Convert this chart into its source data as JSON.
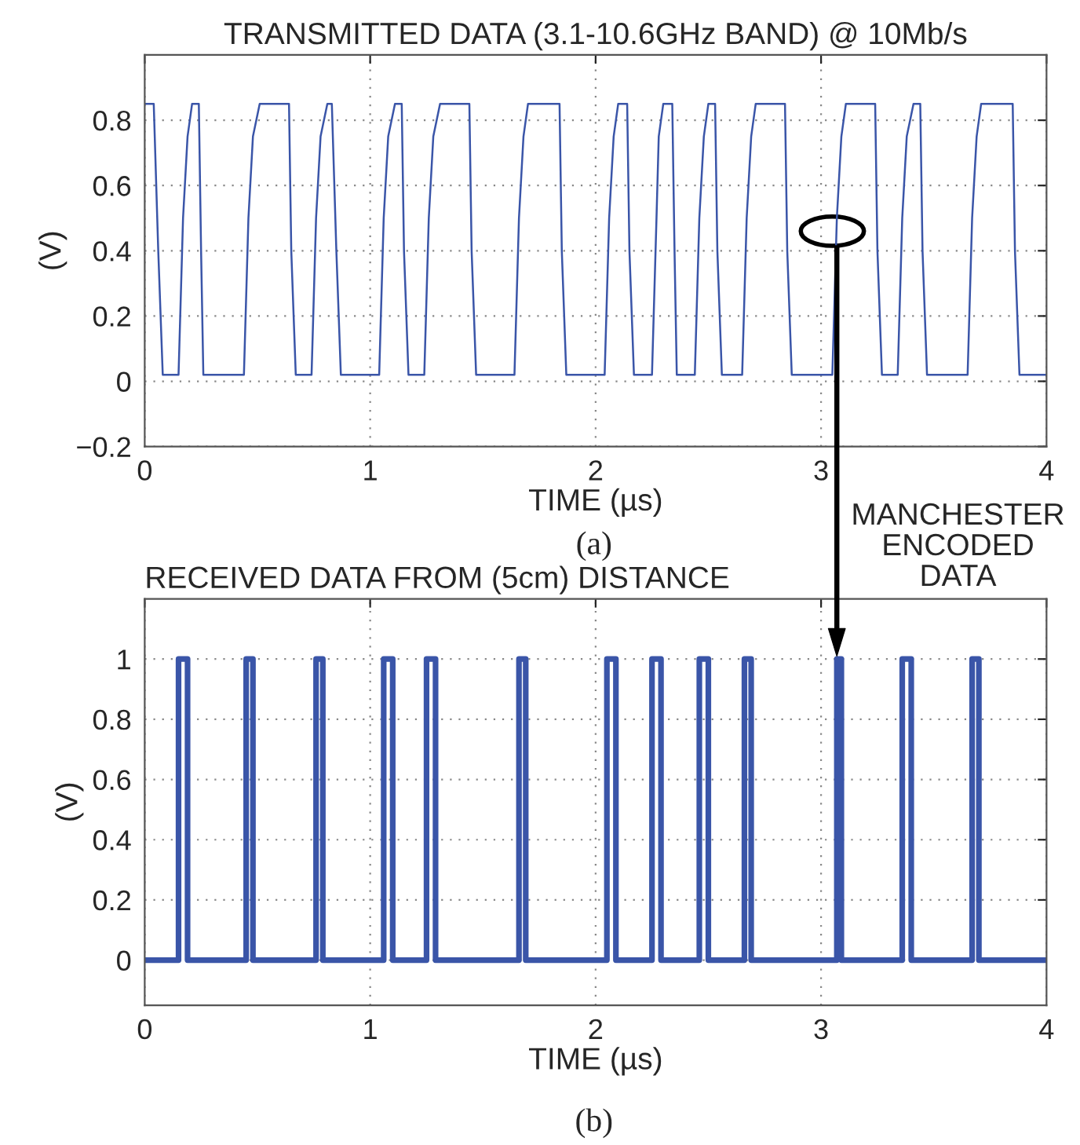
{
  "chart_data": [
    {
      "type": "line",
      "title": "TRANSMITTED DATA (3.1-10.6GHz BAND) @ 10Mb/s",
      "xlabel": "TIME (µs)",
      "ylabel": "(V)",
      "xlim": [
        0,
        4
      ],
      "xticks": [
        0,
        1,
        2,
        3,
        4
      ],
      "ylim": [
        -0.2,
        1
      ],
      "yticks": [
        {
          "value": -0.2,
          "label": "−0.2"
        },
        0,
        0.2,
        0.4,
        0.6,
        0.8
      ],
      "grid": true,
      "line_style": "solid",
      "annotations": [
        "(a)"
      ],
      "series": [
        {
          "color": "#3a55a8",
          "x": [
            0,
            0.04,
            0.06,
            0.08,
            0.15,
            0.17,
            0.19,
            0.21,
            0.24,
            0.25,
            0.26,
            0.44,
            0.46,
            0.48,
            0.51,
            0.64,
            0.65,
            0.67,
            0.74,
            0.76,
            0.78,
            0.81,
            0.83,
            0.85,
            0.87,
            1.04,
            1.06,
            1.08,
            1.11,
            1.14,
            1.15,
            1.17,
            1.24,
            1.26,
            1.28,
            1.31,
            1.44,
            1.45,
            1.47,
            1.64,
            1.66,
            1.68,
            1.7,
            1.84,
            1.85,
            1.87,
            2.04,
            2.06,
            2.08,
            2.1,
            2.14,
            2.15,
            2.17,
            2.25,
            2.27,
            2.28,
            2.3,
            2.34,
            2.35,
            2.36,
            2.44,
            2.46,
            2.48,
            2.5,
            2.53,
            2.54,
            2.56,
            2.65,
            2.67,
            2.69,
            2.71,
            2.84,
            2.85,
            2.87,
            3.05,
            3.07,
            3.09,
            3.11,
            3.24,
            3.25,
            3.27,
            3.34,
            3.36,
            3.38,
            3.41,
            3.44,
            3.45,
            3.47,
            3.65,
            3.67,
            3.69,
            3.71,
            3.85,
            3.86,
            3.88,
            4.0
          ],
          "values": [
            0.85,
            0.85,
            0.4,
            0.02,
            0.02,
            0.5,
            0.75,
            0.85,
            0.85,
            0.4,
            0.02,
            0.02,
            0.5,
            0.75,
            0.85,
            0.85,
            0.4,
            0.02,
            0.02,
            0.5,
            0.75,
            0.85,
            0.85,
            0.4,
            0.02,
            0.02,
            0.5,
            0.75,
            0.85,
            0.85,
            0.4,
            0.02,
            0.02,
            0.5,
            0.75,
            0.85,
            0.85,
            0.4,
            0.02,
            0.02,
            0.5,
            0.75,
            0.85,
            0.85,
            0.4,
            0.02,
            0.02,
            0.5,
            0.75,
            0.85,
            0.85,
            0.4,
            0.02,
            0.02,
            0.5,
            0.75,
            0.85,
            0.85,
            0.4,
            0.02,
            0.02,
            0.5,
            0.75,
            0.85,
            0.85,
            0.4,
            0.02,
            0.02,
            0.5,
            0.75,
            0.85,
            0.85,
            0.4,
            0.02,
            0.02,
            0.5,
            0.75,
            0.85,
            0.85,
            0.4,
            0.02,
            0.02,
            0.5,
            0.75,
            0.85,
            0.85,
            0.4,
            0.02,
            0.02,
            0.5,
            0.75,
            0.85,
            0.85,
            0.4,
            0.02,
            0.02
          ]
        }
      ]
    },
    {
      "type": "step",
      "title": "RECEIVED DATA FROM (5cm) DISTANCE",
      "xlabel": "TIME (µs)",
      "ylabel": "(V)",
      "xlim": [
        0,
        4
      ],
      "xticks": [
        0,
        1,
        2,
        3,
        4
      ],
      "ylim": [
        -0.15,
        1.2
      ],
      "yticks": [
        0,
        0.2,
        0.4,
        0.6,
        0.8,
        1
      ],
      "grid": true,
      "line_style": "solid",
      "annotations": [
        "(b)",
        {
          "text": "MANCHESTER ENCODED DATA",
          "x": 3.07,
          "y": 1
        }
      ],
      "series": [
        {
          "color": "#3a55a8",
          "x": [
            0,
            0.15,
            0.19,
            0.45,
            0.48,
            0.76,
            0.79,
            1.06,
            1.1,
            1.25,
            1.29,
            1.66,
            1.69,
            2.05,
            2.09,
            2.25,
            2.29,
            2.46,
            2.5,
            2.66,
            2.69,
            3.07,
            3.09,
            3.36,
            3.4,
            3.67,
            3.7,
            4.0
          ],
          "values": [
            0,
            1,
            0,
            1,
            0,
            1,
            0,
            1,
            0,
            1,
            0,
            1,
            0,
            1,
            0,
            1,
            0,
            1,
            0,
            1,
            0,
            1,
            0,
            1,
            0,
            1,
            0,
            0
          ]
        }
      ]
    }
  ]
}
